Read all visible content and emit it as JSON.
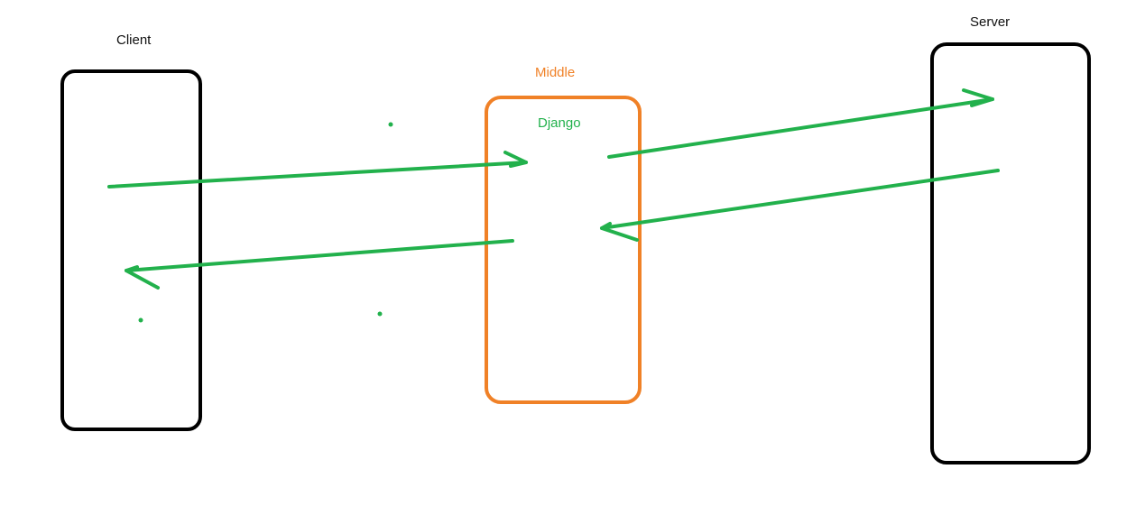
{
  "diagram": {
    "nodes": {
      "client": {
        "label": "Client",
        "stroke": "#000000"
      },
      "middle": {
        "label": "Middle",
        "stroke": "#f08127"
      },
      "django": {
        "label": "Django"
      },
      "server": {
        "label": "Server",
        "stroke": "#000000"
      }
    },
    "colors": {
      "arrow": "#22b14c",
      "middle_text": "#f08127",
      "django_text": "#22b14c"
    },
    "edges": [
      {
        "from": "client",
        "to": "middle"
      },
      {
        "from": "middle",
        "to": "server"
      },
      {
        "from": "server",
        "to": "middle"
      },
      {
        "from": "middle",
        "to": "client"
      }
    ]
  }
}
